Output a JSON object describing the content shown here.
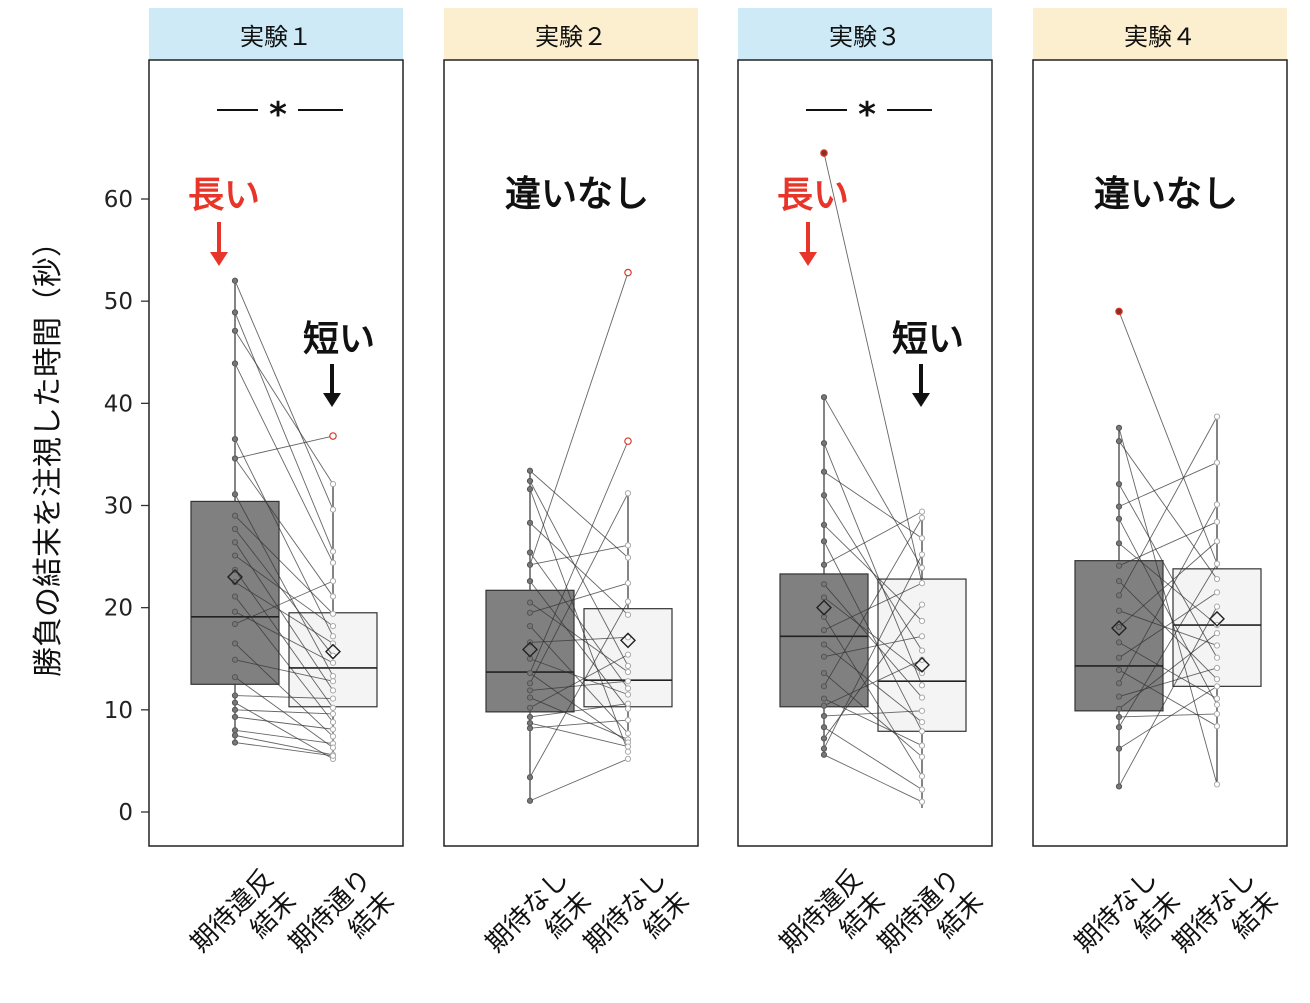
{
  "chart_data": {
    "type": "boxplot",
    "ylabel": "勝負の結末を注視した時間（秒）",
    "ylim": [
      -3,
      74
    ],
    "yticks": [
      0,
      10,
      20,
      30,
      40,
      50,
      60
    ],
    "grid": false,
    "colors": {
      "dark_box": "#808080",
      "light_box": "#f4f4f4",
      "strip_blue": "#cdeaf6",
      "strip_yellow": "#fcefcf",
      "annot_red": "#e8352a",
      "outlier_red": "#d93a2e",
      "line": "#222222"
    },
    "panels": [
      {
        "title": "実験１",
        "strip_color": "#cdeaf6",
        "significance": "*",
        "groups": [
          {
            "label_line1": "期待違反",
            "label_line2": "結末",
            "box": "dark",
            "q1": 12.5,
            "median": 19.1,
            "q3": 30.4,
            "whisker_low": 6.8,
            "whisker_high": 52.0,
            "mean": 23.0,
            "points": [
              52.0,
              48.9,
              47.1,
              43.9,
              36.5,
              34.6,
              31.1,
              29.0,
              27.7,
              26.4,
              25.1,
              23.7,
              22.5,
              21.1,
              19.6,
              18.4,
              16.5,
              14.9,
              13.2,
              11.4,
              10.7,
              10.0,
              9.3,
              8.0,
              7.5,
              6.8
            ],
            "outlier_values": []
          },
          {
            "label_line1": "期待通り",
            "label_line2": "結末",
            "box": "light",
            "q1": 10.3,
            "median": 14.1,
            "q3": 19.5,
            "whisker_low": 5.2,
            "whisker_high": 32.1,
            "mean": 15.7,
            "points": [
              32.1,
              29.6,
              25.5,
              24.4,
              22.6,
              21.1,
              19.4,
              18.2,
              17.2,
              16.5,
              15.3,
              14.6,
              13.3,
              12.8,
              11.9,
              11.1,
              10.2,
              9.6,
              8.8,
              8.1,
              7.4,
              6.7,
              6.3,
              5.6,
              5.2,
              5.5
            ],
            "outlier_values": [
              36.8
            ]
          }
        ],
        "pairs": [
          [
            0,
            1
          ],
          [
            1,
            2
          ],
          [
            2,
            0
          ],
          [
            3,
            3
          ],
          [
            4,
            8
          ],
          [
            5,
            5
          ],
          [
            6,
            12
          ],
          [
            7,
            6
          ],
          [
            8,
            10
          ],
          [
            9,
            14
          ],
          [
            10,
            7
          ],
          [
            11,
            16
          ],
          [
            12,
            9
          ],
          [
            13,
            18
          ],
          [
            14,
            11
          ],
          [
            15,
            4
          ],
          [
            16,
            20
          ],
          [
            17,
            13
          ],
          [
            18,
            22
          ],
          [
            19,
            15
          ],
          [
            20,
            24
          ],
          [
            21,
            17
          ],
          [
            22,
            19
          ],
          [
            23,
            21
          ],
          [
            24,
            23
          ],
          [
            25,
            25
          ]
        ],
        "annotations": [
          {
            "text": "長い",
            "color": "#e8352a",
            "group": 0
          },
          {
            "text": "短い",
            "color": "#111111",
            "group": 1
          }
        ]
      },
      {
        "title": "実験２",
        "strip_color": "#fcefcf",
        "significance": "",
        "groups": [
          {
            "label_line1": "期待なし",
            "label_line2": "結末",
            "box": "dark",
            "q1": 9.8,
            "median": 13.7,
            "q3": 21.7,
            "whisker_low": 1.1,
            "whisker_high": 33.4,
            "mean": 15.9,
            "points": [
              33.4,
              32.4,
              31.6,
              28.3,
              25.4,
              24.2,
              22.6,
              20.5,
              19.5,
              18.2,
              16.6,
              15.0,
              13.6,
              12.6,
              11.9,
              11.2,
              10.2,
              9.3,
              8.7,
              8.2,
              3.4,
              1.1
            ],
            "outlier_values": []
          },
          {
            "label_line1": "期待なし",
            "label_line2": "結末",
            "box": "light",
            "q1": 10.3,
            "median": 12.9,
            "q3": 19.9,
            "whisker_low": 5.9,
            "whisker_high": 31.2,
            "mean": 16.8,
            "points": [
              31.2,
              26.1,
              24.9,
              22.4,
              20.6,
              19.3,
              17.1,
              15.4,
              14.3,
              13.7,
              12.8,
              12.1,
              11.5,
              10.6,
              10.1,
              9.0,
              7.7,
              7.1,
              6.8,
              6.4,
              5.9,
              5.2
            ],
            "outlier_values": [
              52.8,
              36.3
            ]
          },
          {
            "placeholder": true
          }
        ],
        "pairs": [
          [
            0,
            2
          ],
          [
            1,
            8
          ],
          [
            2,
            20
          ],
          [
            3,
            5
          ],
          [
            4,
            11
          ],
          [
            5,
            1
          ],
          [
            6,
            14
          ],
          [
            7,
            9
          ],
          [
            8,
            3
          ],
          [
            9,
            16
          ],
          [
            10,
            6
          ],
          [
            11,
            12
          ],
          [
            12,
            18
          ],
          [
            13,
            0
          ],
          [
            14,
            10
          ],
          [
            15,
            17
          ],
          [
            16,
            7
          ],
          [
            17,
            13
          ],
          [
            18,
            19
          ],
          [
            19,
            15
          ],
          [
            20,
            4
          ],
          [
            21,
            21
          ]
        ],
        "annotations": [
          {
            "text": "違いなし",
            "color": "#111111",
            "group": -1
          }
        ]
      },
      {
        "title": "実験３",
        "strip_color": "#cdeaf6",
        "significance": "*",
        "groups": [
          {
            "label_line1": "期待違反",
            "label_line2": "結末",
            "box": "dark",
            "q1": 10.3,
            "median": 17.2,
            "q3": 23.3,
            "whisker_low": 5.6,
            "whisker_high": 40.6,
            "mean": 20.0,
            "points": [
              40.6,
              36.1,
              33.3,
              31.0,
              28.1,
              26.5,
              24.2,
              22.3,
              21.0,
              19.1,
              17.8,
              16.4,
              15.2,
              13.6,
              12.3,
              11.1,
              10.4,
              9.4,
              8.3,
              7.2,
              6.2,
              5.6
            ],
            "outlier_values": [
              64.5
            ]
          },
          {
            "label_line1": "期待通り",
            "label_line2": "結末",
            "box": "light",
            "q1": 7.9,
            "median": 12.8,
            "q3": 22.8,
            "whisker_low": 0.4,
            "whisker_high": 29.4,
            "mean": 14.4,
            "points": [
              29.4,
              28.8,
              26.8,
              25.2,
              23.9,
              22.4,
              20.3,
              18.7,
              17.2,
              15.8,
              14.9,
              13.6,
              12.4,
              11.2,
              9.9,
              8.8,
              7.9,
              6.5,
              5.4,
              3.5,
              2.2,
              1.0
            ],
            "outlier_values": []
          }
        ],
        "pairs": [
          [
            0,
            4
          ],
          [
            1,
            12
          ],
          [
            2,
            2
          ],
          [
            3,
            9
          ],
          [
            4,
            7
          ],
          [
            5,
            16
          ],
          [
            6,
            0
          ],
          [
            7,
            13
          ],
          [
            8,
            11
          ],
          [
            9,
            19
          ],
          [
            10,
            5
          ],
          [
            11,
            15
          ],
          [
            12,
            8
          ],
          [
            13,
            18
          ],
          [
            14,
            1
          ],
          [
            15,
            17
          ],
          [
            16,
            10
          ],
          [
            17,
            14
          ],
          [
            18,
            20
          ],
          [
            19,
            6
          ],
          [
            20,
            3
          ],
          [
            21,
            21
          ]
        ],
        "annotations": [
          {
            "text": "長い",
            "color": "#e8352a",
            "group": 0
          },
          {
            "text": "短い",
            "color": "#111111",
            "group": 1
          }
        ]
      },
      {
        "title": "実験４",
        "strip_color": "#fcefcf",
        "significance": "",
        "groups": [
          {
            "label_line1": "期待なし",
            "label_line2": "結末",
            "box": "dark",
            "q1": 9.9,
            "median": 14.3,
            "q3": 24.6,
            "whisker_low": 2.5,
            "whisker_high": 37.6,
            "mean": 18.0,
            "points": [
              37.6,
              36.3,
              32.1,
              29.9,
              28.7,
              26.3,
              24.1,
              22.6,
              21.2,
              19.7,
              18.1,
              16.6,
              15.1,
              13.9,
              12.6,
              11.3,
              10.1,
              9.3,
              8.3,
              6.2,
              2.5
            ],
            "outlier_values": [
              49.0
            ]
          },
          {
            "label_line1": "期待なし",
            "label_line2": "結末",
            "box": "light",
            "q1": 12.3,
            "median": 18.3,
            "q3": 23.8,
            "whisker_low": 2.7,
            "whisker_high": 38.7,
            "mean": 18.9,
            "points": [
              38.7,
              34.2,
              30.1,
              28.4,
              26.5,
              24.3,
              22.8,
              21.5,
              20.1,
              18.3,
              17.5,
              16.3,
              15.1,
              14.1,
              13.0,
              12.3,
              11.1,
              10.5,
              9.6,
              8.4,
              2.7
            ],
            "outlier_values": []
          }
        ],
        "pairs": [
          [
            0,
            20
          ],
          [
            1,
            6
          ],
          [
            2,
            12
          ],
          [
            3,
            1
          ],
          [
            4,
            17
          ],
          [
            5,
            9
          ],
          [
            6,
            3
          ],
          [
            7,
            14
          ],
          [
            8,
            0
          ],
          [
            9,
            11
          ],
          [
            10,
            4
          ],
          [
            11,
            16
          ],
          [
            12,
            7
          ],
          [
            13,
            19
          ],
          [
            14,
            2
          ],
          [
            15,
            13
          ],
          [
            16,
            10
          ],
          [
            17,
            18
          ],
          [
            18,
            5
          ],
          [
            19,
            15
          ],
          [
            20,
            8
          ]
        ],
        "annotations": [
          {
            "text": "違いなし",
            "color": "#111111",
            "group": -1
          }
        ]
      }
    ]
  }
}
